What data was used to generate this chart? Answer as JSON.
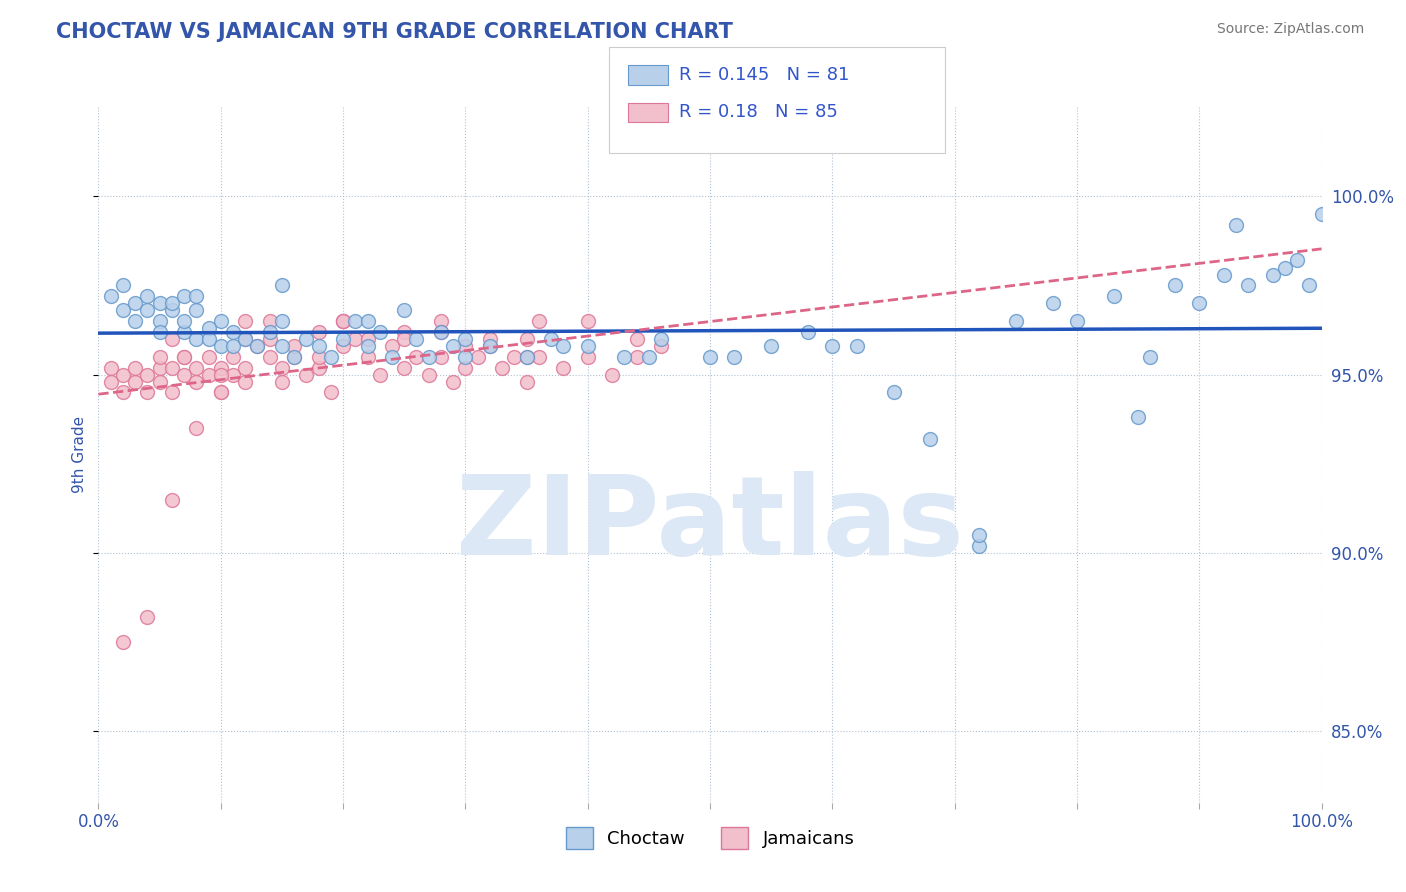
{
  "title": "CHOCTAW VS JAMAICAN 9TH GRADE CORRELATION CHART",
  "source_text": "Source: ZipAtlas.com",
  "ylabel": "9th Grade",
  "xlim": [
    0.0,
    100.0
  ],
  "ylim": [
    83.0,
    102.5
  ],
  "y_ticks": [
    85,
    90,
    95,
    100
  ],
  "choctaw_R": 0.145,
  "choctaw_N": 81,
  "jamaican_R": 0.18,
  "jamaican_N": 85,
  "choctaw_color": "#b8d0ea",
  "choctaw_edge": "#6699cc",
  "jamaican_color": "#f2bfcc",
  "jamaican_edge": "#dd7799",
  "blue_line_color": "#2255bb",
  "pink_line_color": "#dd6688",
  "watermark_color": "#dce8f5",
  "watermark_text": "ZIPatlas",
  "title_color": "#3355aa",
  "tick_label_color": "#3355aa",
  "source_color": "#777777",
  "legend_R_N_color": "#3355cc",
  "bottom_legend_labels": [
    "Choctaw",
    "Jamaicans"
  ],
  "dot_size": 100,
  "choctaw_x": [
    1,
    2,
    2,
    3,
    3,
    4,
    4,
    5,
    5,
    5,
    6,
    6,
    7,
    7,
    7,
    8,
    8,
    9,
    9,
    10,
    10,
    11,
    11,
    12,
    13,
    14,
    15,
    15,
    16,
    17,
    18,
    19,
    20,
    21,
    22,
    23,
    24,
    25,
    26,
    27,
    28,
    29,
    30,
    32,
    35,
    37,
    40,
    43,
    46,
    50,
    55,
    58,
    62,
    65,
    68,
    72,
    75,
    78,
    80,
    83,
    86,
    88,
    90,
    92,
    94,
    96,
    97,
    98,
    99,
    100,
    72,
    85,
    93,
    52,
    60,
    45,
    38,
    30,
    22,
    15,
    8
  ],
  "choctaw_y": [
    97.2,
    96.8,
    97.5,
    97.0,
    96.5,
    97.2,
    96.8,
    96.5,
    97.0,
    96.2,
    96.8,
    97.0,
    96.2,
    97.2,
    96.5,
    96.0,
    96.8,
    96.3,
    96.0,
    95.8,
    96.5,
    96.2,
    95.8,
    96.0,
    95.8,
    96.2,
    95.8,
    96.5,
    95.5,
    96.0,
    95.8,
    95.5,
    96.0,
    96.5,
    95.8,
    96.2,
    95.5,
    96.8,
    96.0,
    95.5,
    96.2,
    95.8,
    95.5,
    95.8,
    95.5,
    96.0,
    95.8,
    95.5,
    96.0,
    95.5,
    95.8,
    96.2,
    95.8,
    94.5,
    93.2,
    90.2,
    96.5,
    97.0,
    96.5,
    97.2,
    95.5,
    97.5,
    97.0,
    97.8,
    97.5,
    97.8,
    98.0,
    98.2,
    97.5,
    99.5,
    90.5,
    93.8,
    99.2,
    95.5,
    95.8,
    95.5,
    95.8,
    96.0,
    96.5,
    97.5,
    97.2
  ],
  "jamaican_x": [
    1,
    1,
    2,
    2,
    3,
    3,
    4,
    4,
    5,
    5,
    5,
    6,
    6,
    7,
    7,
    8,
    8,
    9,
    9,
    10,
    10,
    11,
    11,
    12,
    12,
    13,
    14,
    15,
    15,
    16,
    17,
    18,
    19,
    20,
    21,
    22,
    23,
    24,
    25,
    26,
    27,
    28,
    29,
    30,
    31,
    32,
    33,
    34,
    35,
    36,
    38,
    40,
    42,
    44,
    46,
    2,
    4,
    6,
    8,
    10,
    12,
    14,
    16,
    18,
    20,
    22,
    25,
    28,
    32,
    36,
    40,
    44,
    7,
    14,
    20,
    28,
    35,
    10,
    18,
    25,
    35,
    6,
    12,
    20,
    30
  ],
  "jamaican_y": [
    95.2,
    94.8,
    95.0,
    94.5,
    94.8,
    95.2,
    95.0,
    94.5,
    95.2,
    94.8,
    95.5,
    94.5,
    95.2,
    95.5,
    95.0,
    95.2,
    94.8,
    95.5,
    95.0,
    95.2,
    94.5,
    95.5,
    95.0,
    94.8,
    95.2,
    95.8,
    95.5,
    95.2,
    94.8,
    95.5,
    95.0,
    95.2,
    94.5,
    95.8,
    96.0,
    95.5,
    95.0,
    95.8,
    95.2,
    95.5,
    95.0,
    95.5,
    94.8,
    95.2,
    95.5,
    95.8,
    95.2,
    95.5,
    94.8,
    95.5,
    95.2,
    95.5,
    95.0,
    95.5,
    95.8,
    87.5,
    88.2,
    91.5,
    93.5,
    95.0,
    96.0,
    96.5,
    95.8,
    96.2,
    96.5,
    96.0,
    96.2,
    96.5,
    96.0,
    96.5,
    96.5,
    96.0,
    95.5,
    96.0,
    96.5,
    96.2,
    96.0,
    94.5,
    95.5,
    96.0,
    95.5,
    96.0,
    96.5,
    96.5,
    95.8
  ]
}
